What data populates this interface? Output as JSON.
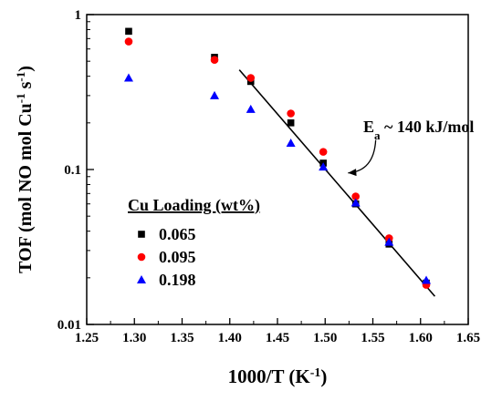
{
  "chart_data": {
    "type": "scatter",
    "xlabel": "1000/T (K",
    "xlabel_sup": "-1",
    "xlabel_close": ")",
    "ylabel_main": "TOF (mol NO mol Cu",
    "ylabel_sup1": "-1",
    "ylabel_mid": " s",
    "ylabel_sup2": "-1",
    "ylabel_close": ")",
    "xlim": [
      1.25,
      1.65
    ],
    "ylim": [
      0.01,
      1
    ],
    "yscale": "log",
    "x_ticks": [
      "1.25",
      "1.30",
      "1.35",
      "1.40",
      "1.45",
      "1.50",
      "1.55",
      "1.60",
      "1.65"
    ],
    "y_ticks": [
      "0.01",
      "0.1",
      "1"
    ],
    "legend_title": "Cu Loading (wt%)",
    "legend_position": "lower-left",
    "series": [
      {
        "name": "0.065",
        "marker": "square",
        "color": "#000000",
        "x": [
          1.294,
          1.384,
          1.422,
          1.464,
          1.498,
          1.532,
          1.567,
          1.606
        ],
        "y": [
          0.78,
          0.53,
          0.37,
          0.2,
          0.11,
          0.06,
          0.033,
          0.0185
        ]
      },
      {
        "name": "0.095",
        "marker": "circle",
        "color": "#ff0000",
        "x": [
          1.294,
          1.384,
          1.422,
          1.464,
          1.498,
          1.532,
          1.567,
          1.606
        ],
        "y": [
          0.67,
          0.51,
          0.39,
          0.23,
          0.13,
          0.067,
          0.036,
          0.018
        ]
      },
      {
        "name": "0.198",
        "marker": "triangle",
        "color": "#0000ff",
        "x": [
          1.294,
          1.384,
          1.422,
          1.464,
          1.498,
          1.532,
          1.567,
          1.606
        ],
        "y": [
          0.39,
          0.3,
          0.245,
          0.148,
          0.104,
          0.061,
          0.034,
          0.0193
        ]
      }
    ],
    "fit_line": {
      "x": [
        1.41,
        1.615
      ],
      "y": [
        0.44,
        0.0152
      ]
    },
    "annotation": {
      "prefix": "E",
      "subscript": "a",
      "suffix": " ~ 140 kJ/mol",
      "arrow_from": [
        1.553,
        0.155
      ],
      "arrow_to": [
        1.524,
        0.095
      ]
    }
  }
}
